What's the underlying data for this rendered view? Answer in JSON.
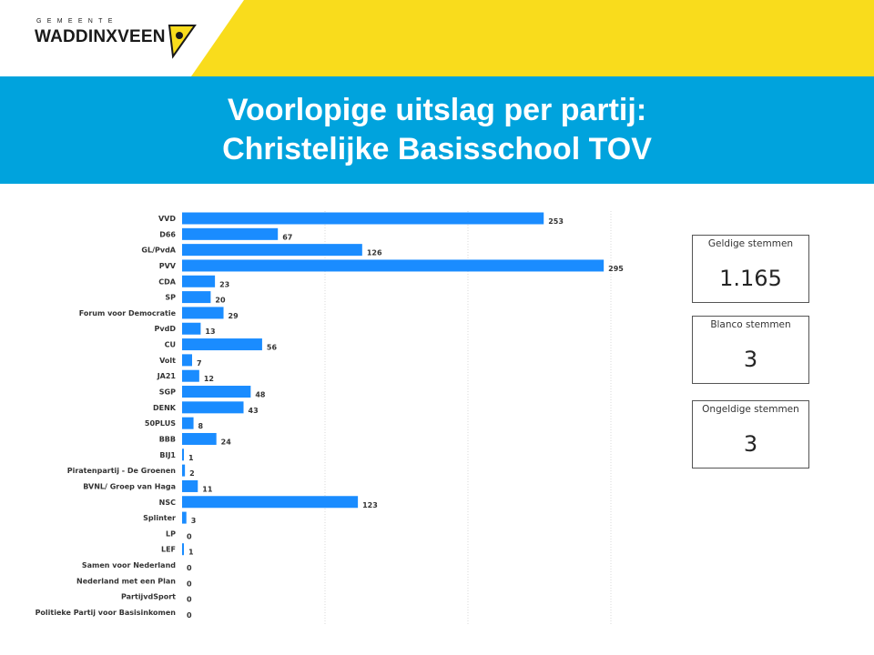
{
  "header": {
    "logo_small": "GEMEENTE",
    "logo_name": "WADDINXVEEN",
    "title_line1": "Voorlopige uitslag per partij:",
    "title_line2": "Christelijke Basisschool TOV"
  },
  "colors": {
    "yellow": "#f9dc1c",
    "blue_band": "#00a3dd",
    "bar": "#1a8cff"
  },
  "cards": [
    {
      "label": "Geldige stemmen",
      "value": "1.165"
    },
    {
      "label": "Blanco stemmen",
      "value": "3"
    },
    {
      "label": "Ongeldige stemmen",
      "value": "3"
    }
  ],
  "chart_data": {
    "type": "bar",
    "orientation": "horizontal",
    "categories": [
      "VVD",
      "D66",
      "GL/PvdA",
      "PVV",
      "CDA",
      "SP",
      "Forum voor Democratie",
      "PvdD",
      "CU",
      "Volt",
      "JA21",
      "SGP",
      "DENK",
      "50PLUS",
      "BBB",
      "BIJ1",
      "Piratenpartij - De Groenen",
      "BVNL/ Groep van Haga",
      "NSC",
      "Splinter",
      "LP",
      "LEF",
      "Samen voor Nederland",
      "Nederland met een Plan",
      "PartijvdSport",
      "Politieke Partij voor Basisinkomen"
    ],
    "values": [
      253,
      67,
      126,
      295,
      23,
      20,
      29,
      13,
      56,
      7,
      12,
      48,
      43,
      8,
      24,
      1,
      2,
      11,
      123,
      3,
      0,
      1,
      0,
      0,
      0,
      0
    ],
    "xlim": [
      0,
      400
    ],
    "xticks": [
      0,
      100,
      200,
      300,
      400
    ],
    "grid": "vertical dotted"
  }
}
